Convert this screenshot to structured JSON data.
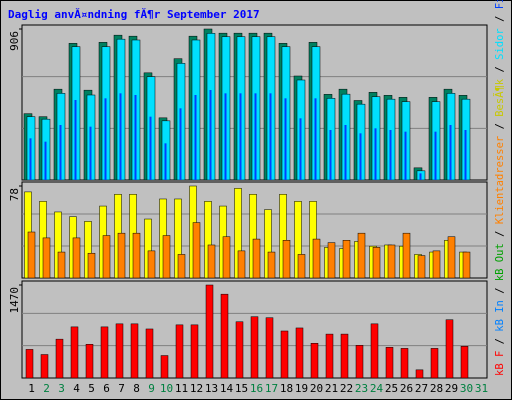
{
  "chart_data": {
    "type": "bar",
    "title": "Daglig anvĂ¤ndning fĂ¶r September 2017",
    "categories": [
      "1",
      "2",
      "3",
      "4",
      "5",
      "6",
      "7",
      "8",
      "9",
      "10",
      "11",
      "12",
      "13",
      "14",
      "15",
      "16",
      "17",
      "18",
      "19",
      "20",
      "21",
      "22",
      "23",
      "24",
      "25",
      "26",
      "27",
      "28",
      "29",
      "30",
      "31"
    ],
    "category_colors": [
      "#000000",
      "#008040",
      "#008040",
      "#000000",
      "#000000",
      "#000000",
      "#000000",
      "#000000",
      "#008040",
      "#008040",
      "#000000",
      "#000000",
      "#000000",
      "#000000",
      "#000000",
      "#008040",
      "#008040",
      "#000000",
      "#000000",
      "#000000",
      "#000000",
      "#000000",
      "#008040",
      "#008040",
      "#000000",
      "#000000",
      "#000000",
      "#000000",
      "#000000",
      "#008040",
      "#008040"
    ],
    "legend_separator": " / ",
    "panels": [
      {
        "ylim": [
          0,
          906
        ],
        "yticks": [
          906
        ],
        "series": [
          {
            "name": "TrĂ¤ffar",
            "color": "#008060",
            "values": [
              398,
              380,
              545,
              820,
              539,
              826,
              869,
              863,
              643,
              373,
              728,
              863,
              906,
              881,
              881,
              881,
              881,
              820,
              624,
              826,
              514,
              545,
              477,
              526,
              508,
              496,
              73,
              496,
              545,
              508,
              null
            ]
          },
          {
            "name": "Sidor",
            "color": "#00e0ff",
            "values": [
              380,
              365,
              520,
              800,
              510,
              800,
              845,
              840,
              620,
              355,
              700,
              840,
              880,
              860,
              860,
              860,
              860,
              800,
              600,
              800,
              490,
              515,
              455,
              500,
              485,
              470,
              55,
              470,
              520,
              485,
              null
            ]
          },
          {
            "name": "Filer",
            "color": "#0040ff",
            "values": [
              250,
              230,
              330,
              480,
              320,
              490,
              520,
              510,
              380,
              220,
              430,
              510,
              540,
              520,
              520,
              520,
              520,
              490,
              370,
              490,
              300,
              330,
              280,
              310,
              300,
              290,
              40,
              290,
              330,
              300,
              null
            ]
          }
        ]
      },
      {
        "ylim": [
          0,
          78
        ],
        "yticks": [
          78
        ],
        "series": [
          {
            "name": "BesĂ¶k",
            "color": "#ffff00",
            "values": [
              73,
              65,
              56,
              52,
              48,
              61,
              71,
              71,
              50,
              67,
              67,
              78,
              65,
              61,
              76,
              71,
              58,
              71,
              65,
              65,
              26,
              25,
              31,
              27,
              28,
              27,
              20,
              22,
              32,
              22,
              null
            ]
          },
          {
            "name": "Klientadresser",
            "color": "#ff8000",
            "values": [
              39,
              34,
              22,
              34,
              21,
              36,
              38,
              38,
              23,
              36,
              20,
              47,
              28,
              35,
              23,
              33,
              22,
              32,
              20,
              33,
              30,
              32,
              38,
              26,
              28,
              38,
              19,
              23,
              35,
              22,
              null
            ]
          }
        ]
      },
      {
        "ylim": [
          0,
          1470
        ],
        "yticks": [
          1470
        ],
        "series": [
          {
            "name": "kB F",
            "color": "#ff0000",
            "values": [
              452,
              371,
              614,
              808,
              533,
              808,
              856,
              856,
              775,
              355,
              840,
              840,
              1470,
              1325,
              889,
              969,
              953,
              743,
              791,
              549,
              694,
              694,
              517,
              856,
              485,
              468,
              129,
              468,
              921,
              501,
              null
            ]
          }
        ],
        "legend": [
          {
            "name": "kB In",
            "color": "#0080ff"
          },
          {
            "name": "kB Out",
            "color": "#00a000"
          }
        ]
      }
    ]
  }
}
